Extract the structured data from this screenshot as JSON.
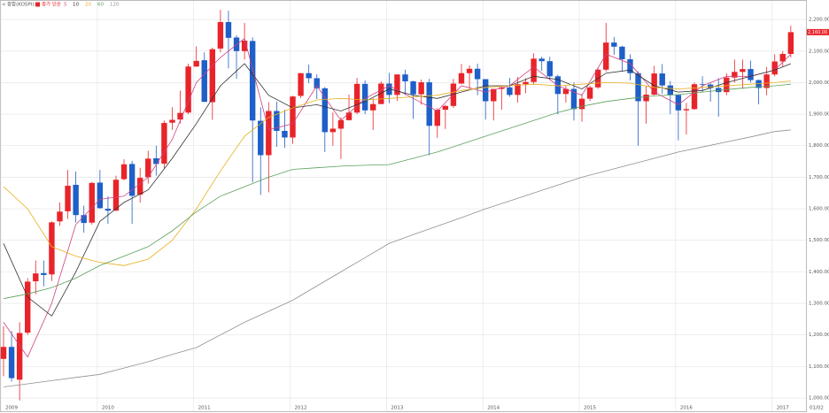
{
  "chart_data": {
    "type": "candlestick",
    "title": "종합(KOSPI)",
    "subtitle": "종가 단순",
    "categories": [
      "2009",
      null,
      null,
      null,
      null,
      null,
      null,
      null,
      null,
      null,
      null,
      null,
      "2010",
      null,
      null,
      null,
      null,
      null,
      null,
      null,
      null,
      null,
      null,
      null,
      "2011",
      null,
      null,
      null,
      null,
      null,
      null,
      null,
      null,
      null,
      null,
      null,
      "2012",
      null,
      null,
      null,
      null,
      null,
      null,
      null,
      null,
      null,
      null,
      null,
      "2013",
      null,
      null,
      null,
      null,
      null,
      null,
      null,
      null,
      null,
      null,
      null,
      "2014",
      null,
      null,
      null,
      null,
      null,
      null,
      null,
      null,
      null,
      null,
      null,
      "2015",
      null,
      null,
      null,
      null,
      null,
      null,
      null,
      null,
      null,
      null,
      null,
      "2016",
      null,
      null,
      null,
      null,
      null,
      null,
      null,
      null,
      null,
      null,
      null,
      "2017",
      null,
      null
    ],
    "x_end_label": "01/02",
    "open": [
      1124,
      1162,
      1058,
      1207,
      1370,
      1396,
      1392,
      1560,
      1592,
      1676,
      1580,
      1556,
      1683,
      1600,
      1594,
      1694,
      1742,
      1645,
      1700,
      1760,
      1743,
      1873,
      1883,
      1905,
      2051,
      2071,
      1938,
      2108,
      2192,
      2143,
      2100,
      2132,
      1879,
      1770,
      1910,
      1847,
      1826,
      1958,
      2030,
      2014,
      1982,
      1843,
      1854,
      1881,
      1905,
      1996,
      1912,
      1932,
      1997,
      1961,
      2026,
      2004,
      1963,
      2001,
      1863,
      1914,
      1926,
      1997,
      2030,
      2044,
      2011,
      1941,
      1980,
      1985,
      1961,
      1995,
      2002,
      2076,
      2068,
      2020,
      1964,
      1980,
      1916,
      1949,
      1985,
      2041,
      2127,
      2114,
      2074,
      2030,
      1941,
      1962,
      2029,
      1991,
      1961,
      1912,
      1916,
      1995,
      1994,
      1983,
      1970,
      2016,
      2034,
      2043,
      2008,
      1983,
      2026,
      2067,
      2091
    ],
    "high": [
      1228,
      1212,
      1240,
      1380,
      1436,
      1436,
      1560,
      1620,
      1723,
      1718,
      1610,
      1685,
      1723,
      1640,
      1705,
      1757,
      1752,
      1730,
      1784,
      1800,
      1880,
      1922,
      1975,
      2060,
      2115,
      2096,
      2111,
      2231,
      2228,
      2150,
      2189,
      2143,
      1922,
      1938,
      1940,
      1914,
      1958,
      2030,
      2057,
      2026,
      1986,
      1905,
      1890,
      1962,
      2015,
      2007,
      1950,
      2004,
      2031,
      2026,
      2041,
      2006,
      2010,
      2012,
      1920,
      1930,
      2012,
      2059,
      2055,
      2060,
      2011,
      1980,
      1990,
      2015,
      2018,
      2014,
      2093,
      2082,
      2082,
      2025,
      1990,
      2000,
      1964,
      1990,
      2045,
      2189,
      2145,
      2117,
      2090,
      2036,
      1990,
      2053,
      2059,
      2005,
      1963,
      1936,
      2000,
      2020,
      1998,
      2014,
      2030,
      2073,
      2073,
      2070,
      2010,
      2050,
      2090,
      2100,
      2180
    ],
    "low": [
      1069,
      1052,
      992,
      1200,
      1329,
      1354,
      1371,
      1546,
      1568,
      1556,
      1524,
      1550,
      1600,
      1552,
      1593,
      1690,
      1552,
      1620,
      1680,
      1705,
      1728,
      1850,
      1870,
      1900,
      2050,
      1938,
      1882,
      2096,
      2045,
      2012,
      2073,
      1684,
      1644,
      1652,
      1796,
      1793,
      1806,
      1951,
      1998,
      1948,
      1780,
      1800,
      1758,
      1880,
      1900,
      1900,
      1850,
      1932,
      1935,
      1942,
      1961,
      1885,
      1930,
      1770,
      1825,
      1853,
      1920,
      1995,
      1981,
      1960,
      1883,
      1880,
      1914,
      1955,
      1937,
      1966,
      1993,
      2037,
      2008,
      1900,
      1937,
      1880,
      1876,
      1942,
      1980,
      2035,
      2088,
      2035,
      2007,
      1800,
      1870,
      1960,
      1965,
      1900,
      1817,
      1835,
      1914,
      1970,
      1940,
      1892,
      1960,
      2000,
      1980,
      2000,
      1931,
      1960,
      2020,
      2050,
      2080
    ],
    "close": [
      1162,
      1063,
      1206,
      1369,
      1395,
      1390,
      1557,
      1591,
      1673,
      1580,
      1555,
      1682,
      1602,
      1594,
      1692,
      1741,
      1641,
      1698,
      1759,
      1742,
      1872,
      1882,
      1904,
      2051,
      2069,
      1939,
      2106,
      2192,
      2142,
      2100,
      2133,
      1880,
      1770,
      1910,
      1847,
      1826,
      1956,
      2030,
      2014,
      1982,
      1843,
      1854,
      1881,
      1905,
      1996,
      1912,
      1932,
      1997,
      1961,
      2026,
      2004,
      1963,
      2001,
      1863,
      1914,
      1926,
      1997,
      2030,
      2044,
      2011,
      1941,
      1980,
      1985,
      1961,
      1995,
      2002,
      2076,
      2068,
      2020,
      1964,
      1980,
      1916,
      1949,
      1985,
      2041,
      2127,
      2114,
      2074,
      2030,
      1941,
      1962,
      2029,
      1991,
      1961,
      1912,
      1916,
      1995,
      1994,
      1983,
      1970,
      2016,
      2034,
      2043,
      2008,
      1983,
      2026,
      2067,
      2091,
      2160
    ],
    "up_color": "#e8242a",
    "down_color": "#1e5fc8",
    "last_price_label": "2,160.00",
    "x": [
      0,
      3,
      6,
      9,
      12,
      15,
      18,
      21,
      24,
      27,
      30,
      33,
      36,
      39,
      42,
      45,
      48,
      51,
      54,
      57,
      60,
      63,
      66,
      69,
      72,
      75,
      78,
      81,
      84,
      87,
      90,
      93,
      96,
      98
    ],
    "series": [
      {
        "name": "5",
        "color": "#d04080",
        "values": [
          1240,
          1130,
          1300,
          1550,
          1630,
          1640,
          1700,
          1820,
          2000,
          2080,
          2140,
          1850,
          1870,
          1990,
          1880,
          1950,
          1990,
          1950,
          1910,
          1990,
          1970,
          1990,
          2050,
          1990,
          1960,
          2090,
          2060,
          1970,
          1930,
          1990,
          2020,
          2020,
          2040,
          2090
        ]
      },
      {
        "name": "10",
        "color": "#303030",
        "values": [
          1490,
          1320,
          1260,
          1400,
          1560,
          1620,
          1660,
          1760,
          1870,
          1990,
          2060,
          1960,
          1920,
          1930,
          1910,
          1940,
          1980,
          1960,
          1950,
          1970,
          1990,
          1990,
          2020,
          2010,
          1980,
          2030,
          2040,
          1990,
          1970,
          1975,
          2000,
          2020,
          2040,
          2060
        ]
      },
      {
        "name": "20",
        "color": "#e8b020",
        "values": [
          1670,
          1600,
          1480,
          1450,
          1430,
          1420,
          1440,
          1500,
          1600,
          1720,
          1830,
          1890,
          1920,
          1945,
          1950,
          1945,
          1950,
          1955,
          1960,
          1975,
          1985,
          1990,
          1995,
          1990,
          1995,
          2000,
          1998,
          1985,
          1980,
          1985,
          1990,
          1995,
          2000,
          2005
        ]
      },
      {
        "name": "60",
        "color": "#5aa05a",
        "values": [
          1315,
          1330,
          1350,
          1380,
          1420,
          1450,
          1480,
          1530,
          1590,
          1640,
          1670,
          1700,
          1725,
          1730,
          1735,
          1738,
          1740,
          1760,
          1780,
          1805,
          1830,
          1855,
          1880,
          1905,
          1925,
          1940,
          1950,
          1958,
          1962,
          1970,
          1978,
          1985,
          1990,
          1995
        ]
      },
      {
        "name": "120",
        "color": "#909090",
        "values": [
          1035,
          1045,
          1055,
          1065,
          1075,
          1095,
          1115,
          1138,
          1160,
          1200,
          1240,
          1275,
          1310,
          1355,
          1400,
          1445,
          1490,
          1518,
          1545,
          1572,
          1600,
          1625,
          1650,
          1675,
          1700,
          1720,
          1740,
          1760,
          1780,
          1796,
          1812,
          1828,
          1845,
          1850
        ]
      }
    ],
    "ylim": [
      958,
      2262
    ],
    "yticks": [
      {
        "value": 1000,
        "label": "1,000.00"
      },
      {
        "value": 1100,
        "label": "1,100.00"
      },
      {
        "value": 1200,
        "label": "1,200.00"
      },
      {
        "value": 1300,
        "label": "1,300.00"
      },
      {
        "value": 1400,
        "label": "1,400.00"
      },
      {
        "value": 1500,
        "label": "1,500.00"
      },
      {
        "value": 1600,
        "label": "1,600.00"
      },
      {
        "value": 1700,
        "label": "1,700.00"
      },
      {
        "value": 1800,
        "label": "1,800.00"
      },
      {
        "value": 1900,
        "label": "1,900.00"
      },
      {
        "value": 2000,
        "label": "2,000.00"
      },
      {
        "value": 2100,
        "label": "2,100.00"
      },
      {
        "value": 2200,
        "label": "2,200.00"
      }
    ],
    "grid": true
  }
}
